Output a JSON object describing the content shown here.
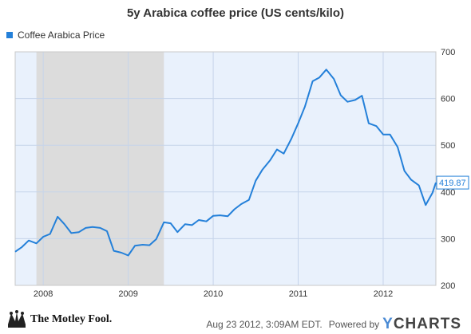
{
  "colors": {
    "series": "#2480d9",
    "plot_background": "#e9f1fc",
    "recession_shade": "#dcdcdc",
    "grid": "#c6d4ea",
    "axis_text": "#333333"
  },
  "footer": {
    "logo_text": "The Motley Fool.",
    "logo_icon": "jester-hat-icon",
    "date_text": "Aug 23 2012, 3:09AM EDT.",
    "powered_by": "Powered by",
    "brand_y": "Y",
    "brand_rest": "CHARTS"
  },
  "chart_data": {
    "type": "line",
    "title": "5y Arabica coffee price (US cents/kilo)",
    "legend_position": "top-left",
    "grid": true,
    "ylim": [
      200,
      700
    ],
    "yticks": [
      200,
      300,
      400,
      500,
      600,
      700
    ],
    "ytick_labels": [
      "200",
      "300",
      "400",
      "500",
      "600",
      "700"
    ],
    "xlim": [
      2007.67,
      2012.62
    ],
    "xticks": [
      2008,
      2009,
      2010,
      2011,
      2012
    ],
    "xtick_labels": [
      "2008",
      "2009",
      "2010",
      "2011",
      "2012"
    ],
    "shaded_periods": [
      [
        2007.92,
        2009.42
      ]
    ],
    "last_value_label": "419.87",
    "series": [
      {
        "name": "Coffee Arabica Price",
        "x": [
          2007.67,
          2007.75,
          2007.83,
          2007.92,
          2008.0,
          2008.08,
          2008.17,
          2008.25,
          2008.33,
          2008.42,
          2008.5,
          2008.58,
          2008.67,
          2008.75,
          2008.83,
          2008.92,
          2009.0,
          2009.08,
          2009.17,
          2009.25,
          2009.33,
          2009.42,
          2009.5,
          2009.58,
          2009.67,
          2009.75,
          2009.83,
          2009.92,
          2010.0,
          2010.08,
          2010.17,
          2010.25,
          2010.33,
          2010.42,
          2010.5,
          2010.58,
          2010.67,
          2010.75,
          2010.83,
          2010.92,
          2011.0,
          2011.08,
          2011.17,
          2011.25,
          2011.33,
          2011.42,
          2011.5,
          2011.58,
          2011.67,
          2011.75,
          2011.83,
          2011.92,
          2012.0,
          2012.08,
          2012.17,
          2012.25,
          2012.33,
          2012.42,
          2012.5,
          2012.58,
          2012.62
        ],
        "values": [
          272,
          282,
          296,
          290,
          304,
          310,
          347,
          331,
          312,
          314,
          323,
          325,
          323,
          316,
          274,
          270,
          264,
          285,
          287,
          286,
          299,
          335,
          333,
          314,
          331,
          329,
          340,
          337,
          349,
          350,
          348,
          363,
          374,
          383,
          424,
          448,
          468,
          491,
          482,
          514,
          547,
          583,
          637,
          645,
          662,
          642,
          607,
          593,
          597,
          606,
          547,
          541,
          523,
          523,
          496,
          445,
          426,
          414,
          372,
          398,
          420
        ]
      }
    ]
  }
}
